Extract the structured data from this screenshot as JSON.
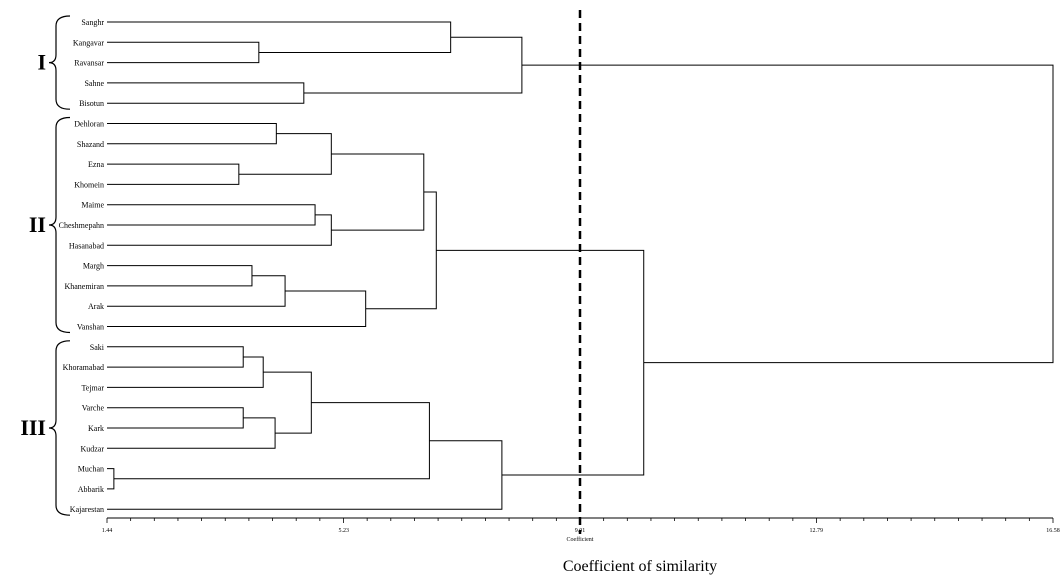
{
  "chart_data": {
    "type": "dendrogram",
    "xlabel": "Coefficient of similarity",
    "axis_caption": "Coefficient",
    "xticks": [
      "1.44",
      "5.23",
      "9.01",
      "12.79",
      "16.58"
    ],
    "xlim": [
      1.44,
      16.58
    ],
    "cutoff": 9.01,
    "leaves": [
      "Sanghr",
      "Kangavar",
      "Ravansar",
      "Sahne",
      "Bisotun",
      "Dehloran",
      "Shazand",
      "Ezna",
      "Khomein",
      "Maime",
      "Cheshmepahn",
      "Hasanabad",
      "Margh",
      "Khanemiran",
      "Arak",
      "Vanshan",
      "Saki",
      "Khoramabad",
      "Tejmar",
      "Varche",
      "Kark",
      "Kudzar",
      "Muchan",
      "Abbarik",
      "Kajarestan"
    ],
    "merges": [
      {
        "a": "Kangavar",
        "b": "Ravansar",
        "height": 3.87
      },
      {
        "a": "Sahne",
        "b": "Bisotun",
        "height": 4.59
      },
      {
        "a": "Sanghr",
        "b": "Kangavar+Ravansar",
        "height": 6.94
      },
      {
        "a": "Sanghr+Kangavar+Ravansar",
        "b": "Sahne+Bisotun",
        "height": 8.08
      },
      {
        "a": "Dehloran",
        "b": "Shazand",
        "height": 4.15
      },
      {
        "a": "Ezna",
        "b": "Khomein",
        "height": 3.55
      },
      {
        "a": "Dehloran+Shazand",
        "b": "Ezna+Khomein",
        "height": 5.03
      },
      {
        "a": "Maime",
        "b": "Cheshmepahn",
        "height": 4.77
      },
      {
        "a": "Maime+Cheshmepahn",
        "b": "Hasanabad",
        "height": 5.03
      },
      {
        "a": "I-a",
        "b": "I-b",
        "height": 6.51
      },
      {
        "a": "Margh",
        "b": "Khanemiran",
        "height": 3.76
      },
      {
        "a": "Margh+Khanemiran",
        "b": "Arak",
        "height": 4.29
      },
      {
        "a": "Margh+Khanemiran+Arak",
        "b": "Vanshan",
        "height": 5.58
      },
      {
        "a": "Group II upper",
        "b": "Group II lower",
        "height": 6.71
      },
      {
        "a": "Saki",
        "b": "Khoramabad",
        "height": 3.62
      },
      {
        "a": "Saki+Khoramabad",
        "b": "Tejmar",
        "height": 3.94
      },
      {
        "a": "Varche",
        "b": "Kark",
        "height": 3.62
      },
      {
        "a": "Varche+Kark",
        "b": "Kudzar",
        "height": 4.13
      },
      {
        "a": "Saki-Tejmar",
        "b": "Varche-Kudzar",
        "height": 4.71
      },
      {
        "a": "Muchan",
        "b": "Abbarik",
        "height": 1.55
      },
      {
        "a": "Saki-Kudzar",
        "b": "Muchan+Abbarik",
        "height": 6.6
      },
      {
        "a": "Saki-Abbarik",
        "b": "Kajarestan",
        "height": 7.76
      },
      {
        "a": "Group II",
        "b": "Group III",
        "height": 10.03
      },
      {
        "a": "Group I",
        "b": "Groups II+III",
        "height": 16.58
      }
    ],
    "groups": [
      {
        "label": "I",
        "from": "Sanghr",
        "to": "Bisotun"
      },
      {
        "label": "II",
        "from": "Dehloran",
        "to": "Vanshan"
      },
      {
        "label": "III",
        "from": "Saki",
        "to": "Kajarestan"
      }
    ],
    "colors": {
      "lines": "#000000",
      "cutoff": "#000000"
    }
  }
}
